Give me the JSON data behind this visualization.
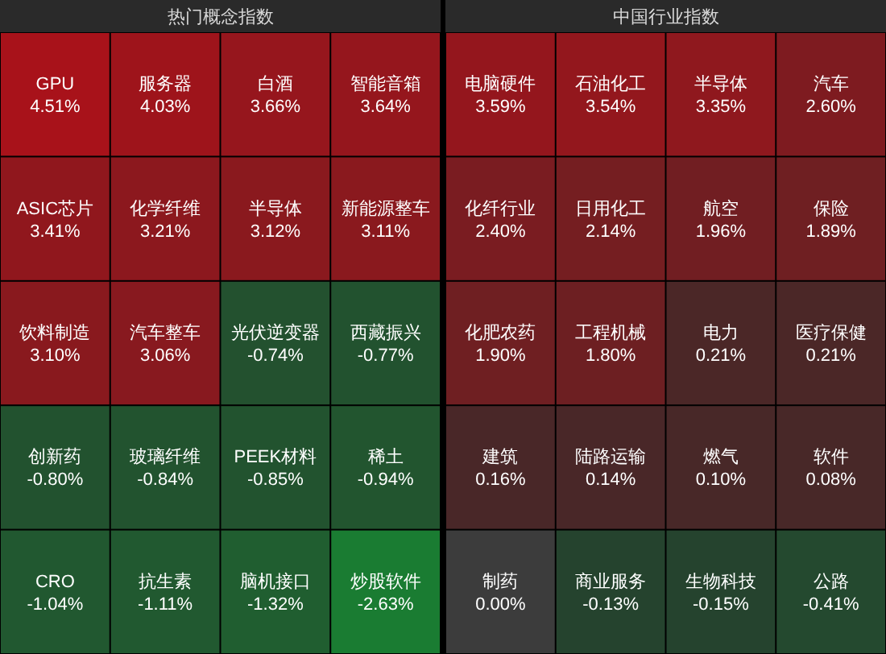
{
  "chart_data": [
    {
      "type": "other",
      "title": "热门概念指数",
      "categories": [
        "GPU",
        "服务器",
        "白酒",
        "智能音箱",
        "ASIC芯片",
        "化学纤维",
        "半导体",
        "新能源整车",
        "饮料制造",
        "汽车整车",
        "光伏逆变器",
        "西藏振兴",
        "创新药",
        "玻璃纤维",
        "PEEK材料",
        "稀土",
        "CRO",
        "抗生素",
        "脑机接口",
        "炒股软件"
      ],
      "values": [
        4.51,
        4.03,
        3.66,
        3.64,
        3.41,
        3.21,
        3.12,
        3.11,
        3.1,
        3.06,
        -0.74,
        -0.77,
        -0.8,
        -0.84,
        -0.85,
        -0.94,
        -1.04,
        -1.11,
        -1.32,
        -2.63
      ],
      "value_labels": [
        "4.51%",
        "4.03%",
        "3.66%",
        "3.64%",
        "3.41%",
        "3.21%",
        "3.12%",
        "3.11%",
        "3.10%",
        "3.06%",
        "-0.74%",
        "-0.77%",
        "-0.80%",
        "-0.84%",
        "-0.85%",
        "-0.94%",
        "-1.04%",
        "-1.11%",
        "-1.32%",
        "-2.63%"
      ]
    },
    {
      "type": "other",
      "title": "中国行业指数",
      "categories": [
        "电脑硬件",
        "石油化工",
        "半导体",
        "汽车",
        "化纤行业",
        "日用化工",
        "航空",
        "保险",
        "化肥农药",
        "工程机械",
        "电力",
        "医疗保健",
        "建筑",
        "陆路运输",
        "燃气",
        "软件",
        "制药",
        "商业服务",
        "生物科技",
        "公路"
      ],
      "values": [
        3.59,
        3.54,
        3.35,
        2.6,
        2.4,
        2.14,
        1.96,
        1.89,
        1.9,
        1.8,
        0.21,
        0.21,
        0.16,
        0.14,
        0.1,
        0.08,
        0.0,
        -0.13,
        -0.15,
        -0.41
      ],
      "value_labels": [
        "3.59%",
        "3.54%",
        "3.35%",
        "2.60%",
        "2.40%",
        "2.14%",
        "1.96%",
        "1.89%",
        "1.90%",
        "1.80%",
        "0.21%",
        "0.21%",
        "0.16%",
        "0.14%",
        "0.10%",
        "0.08%",
        "0.00%",
        "-0.13%",
        "-0.15%",
        "-0.41%"
      ]
    }
  ]
}
